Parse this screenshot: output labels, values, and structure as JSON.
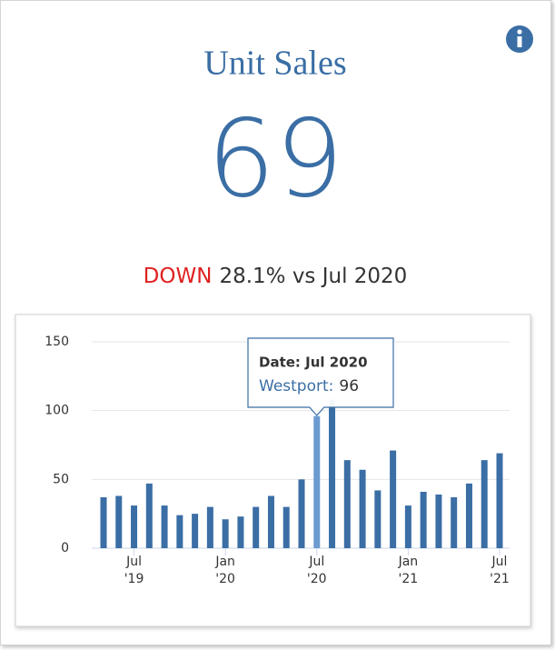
{
  "header": {
    "title": "Unit Sales",
    "value": "69",
    "trend": "DOWN",
    "comparison": "28.1% vs Jul 2020"
  },
  "chart_data": {
    "type": "bar",
    "categories": [
      null,
      null,
      "Jul\n'19",
      null,
      null,
      null,
      null,
      null,
      "Jan\n'20",
      null,
      null,
      null,
      null,
      null,
      "Jul\n'20",
      null,
      null,
      null,
      null,
      null,
      "Jan\n'21",
      null,
      null,
      null,
      null,
      null,
      "Jul\n'21"
    ],
    "values": [
      37,
      38,
      31,
      47,
      31,
      24,
      25,
      30,
      21,
      23,
      30,
      38,
      30,
      50,
      96,
      108,
      64,
      57,
      42,
      71,
      31,
      41,
      39,
      37,
      47,
      64,
      69
    ],
    "color": "#3a6ea5",
    "highlight_color": "#6b9bd0",
    "ylim": [
      0,
      150
    ],
    "yticks": [
      0,
      50,
      100,
      150
    ],
    "grid": true,
    "tooltip": {
      "index": 14,
      "title": "Date: Jul 2020",
      "series_label": "Westport:"
    }
  }
}
